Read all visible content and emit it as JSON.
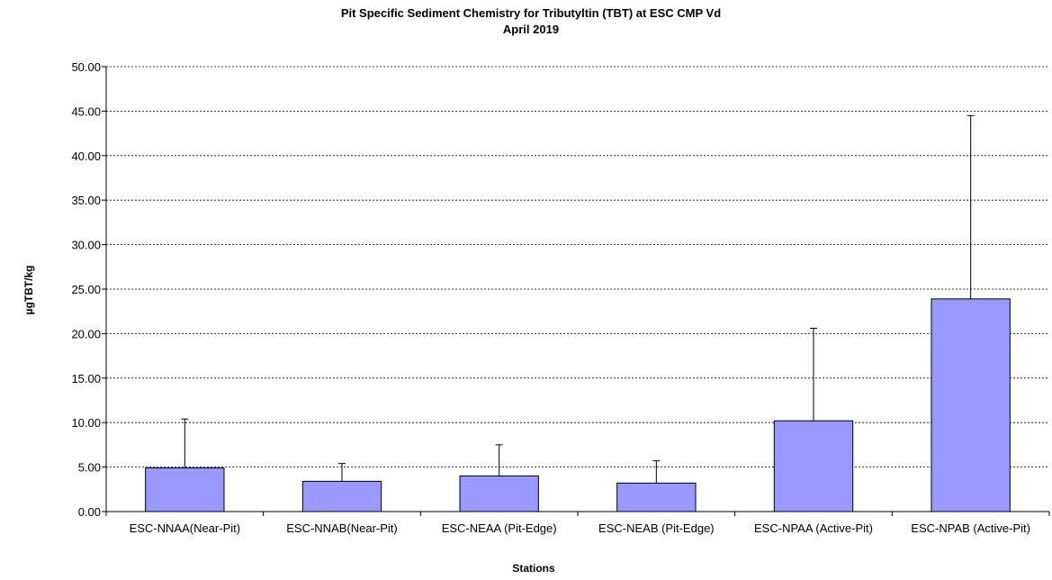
{
  "chart_data": {
    "type": "bar",
    "title": "Pit Specific Sediment Chemistry for Tributyltin (TBT) at  ESC CMP Vd",
    "subtitle": "April 2019",
    "xlabel": "Stations",
    "ylabel": "µgTBT/kg",
    "ylim": [
      0,
      50
    ],
    "ytick_step": 5,
    "ytick_labels": [
      "0.00",
      "5.00",
      "10.00",
      "15.00",
      "20.00",
      "25.00",
      "30.00",
      "35.00",
      "40.00",
      "45.00",
      "50.00"
    ],
    "grid": true,
    "legend": "none",
    "categories": [
      "ESC-NNAA(Near-Pit)",
      "ESC-NNAB(Near-Pit)",
      "ESC-NEAA (Pit-Edge)",
      "ESC-NEAB (Pit-Edge)",
      "ESC-NPAA (Active-Pit)",
      "ESC-NPAB (Active-Pit)"
    ],
    "values": [
      4.9,
      3.4,
      4.0,
      3.2,
      10.2,
      23.9
    ],
    "error_upper": [
      5.5,
      2.0,
      3.5,
      2.5,
      10.4,
      20.6
    ],
    "bar_color": "#9999ff",
    "bar_edge_color": "#000000"
  }
}
